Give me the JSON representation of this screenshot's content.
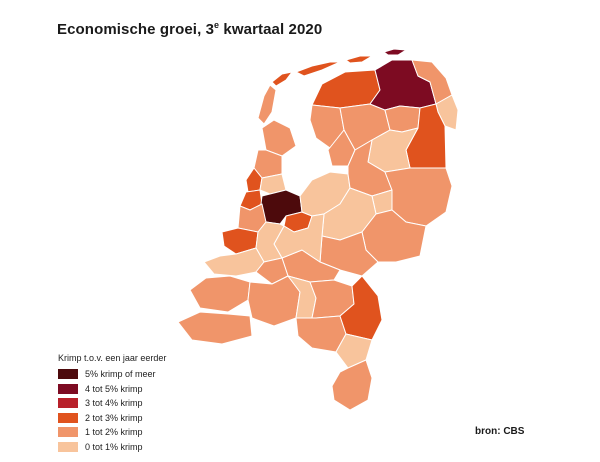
{
  "title": {
    "main": "Economische groei, 3",
    "superscript": "e",
    "rest": " kwartaal 2020"
  },
  "legend": {
    "title": "Krimp t.o.v. een jaar eerder",
    "items": [
      {
        "label": "5% krimp of meer",
        "color": "#4d0a0c"
      },
      {
        "label": "4 tot 5% krimp",
        "color": "#7d0b22"
      },
      {
        "label": "3 tot 4% krimp",
        "color": "#b8202a"
      },
      {
        "label": "2 tot 3% krimp",
        "color": "#e0531e"
      },
      {
        "label": "1 tot 2% krimp",
        "color": "#f0956a"
      },
      {
        "label": "0 tot 1% krimp",
        "color": "#f8c49c"
      }
    ]
  },
  "source": "bron: CBS",
  "colors": {
    "border": "#ffffff",
    "background": "#ffffff"
  }
}
